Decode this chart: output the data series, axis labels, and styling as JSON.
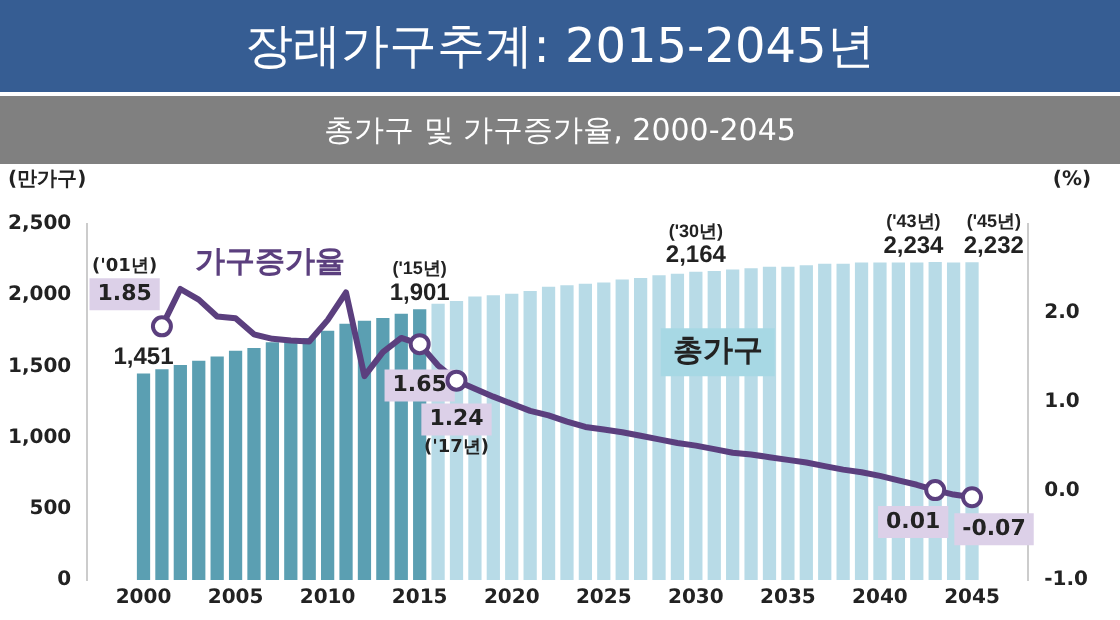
{
  "chart_data": {
    "type": "bar",
    "title": "장래가구추계: 2015-2045년",
    "subtitle": "총가구 및 가구증가율, 2000-2045",
    "ylabel": "(만가구)",
    "y2label": "(%)",
    "x": [
      2000,
      2001,
      2002,
      2003,
      2004,
      2005,
      2006,
      2007,
      2008,
      2009,
      2010,
      2011,
      2012,
      2013,
      2014,
      2015,
      2016,
      2017,
      2018,
      2019,
      2020,
      2021,
      2022,
      2023,
      2024,
      2025,
      2026,
      2027,
      2028,
      2029,
      2030,
      2031,
      2032,
      2033,
      2034,
      2035,
      2036,
      2037,
      2038,
      2039,
      2040,
      2041,
      2042,
      2043,
      2044,
      2045
    ],
    "xlim": [
      1999.5,
      2045.5
    ],
    "xticks": [
      2000,
      2005,
      2010,
      2015,
      2020,
      2025,
      2030,
      2035,
      2040,
      2045
    ],
    "ylim": [
      0,
      2500
    ],
    "yticks": [
      0,
      500,
      {
        "value": 1000,
        "label": "1,000"
      },
      {
        "value": 1500,
        "label": "1,500"
      },
      {
        "value": 2000,
        "label": "2,000"
      },
      {
        "value": 2500,
        "label": "2,500"
      }
    ],
    "y2lim": [
      -1,
      3
    ],
    "y2ticks": [
      {
        "value": -1,
        "label": "-1.0"
      },
      {
        "value": 0,
        "label": "0.0"
      },
      {
        "value": 1,
        "label": "1.0"
      },
      {
        "value": 2,
        "label": "2.0"
      }
    ],
    "grid": false,
    "legend": false,
    "series": [
      {
        "name": "총가구",
        "colors": [
          "#5b9fb2",
          "#5b9fb2",
          "#5b9fb2",
          "#5b9fb2",
          "#5b9fb2",
          "#5b9fb2",
          "#5b9fb2",
          "#5b9fb2",
          "#5b9fb2",
          "#5b9fb2",
          "#5b9fb2",
          "#5b9fb2",
          "#5b9fb2",
          "#5b9fb2",
          "#5b9fb2",
          "#5b9fb2",
          "#b8dbe7",
          "#b8dbe7",
          "#b8dbe7",
          "#b8dbe7",
          "#b8dbe7",
          "#b8dbe7",
          "#b8dbe7",
          "#b8dbe7",
          "#b8dbe7",
          "#b8dbe7",
          "#b8dbe7",
          "#b8dbe7",
          "#b8dbe7",
          "#b8dbe7",
          "#b8dbe7",
          "#b8dbe7",
          "#b8dbe7",
          "#b8dbe7",
          "#b8dbe7",
          "#b8dbe7",
          "#b8dbe7",
          "#b8dbe7",
          "#b8dbe7",
          "#b8dbe7",
          "#b8dbe7",
          "#b8dbe7",
          "#b8dbe7",
          "#b8dbe7",
          "#b8dbe7",
          "#b8dbe7"
        ],
        "values": [
          1451,
          1480,
          1510,
          1540,
          1570,
          1610,
          1630,
          1670,
          1680,
          1700,
          1750,
          1800,
          1820,
          1840,
          1870,
          1901,
          1940,
          1960,
          1990,
          2000,
          2010,
          2030,
          2060,
          2070,
          2080,
          2090,
          2110,
          2120,
          2140,
          2150,
          2164,
          2170,
          2180,
          2190,
          2200,
          2200,
          2210,
          2220,
          2220,
          2230,
          2230,
          2230,
          2230,
          2234,
          2230,
          2232
        ],
        "value_labels": [
          "1,451",
          null,
          null,
          null,
          null,
          null,
          null,
          null,
          null,
          null,
          null,
          null,
          null,
          null,
          null,
          "('15년)\n1,901",
          null,
          null,
          null,
          null,
          null,
          null,
          null,
          null,
          null,
          null,
          null,
          null,
          null,
          null,
          "('30년)\n2,164",
          null,
          null,
          null,
          null,
          null,
          null,
          null,
          null,
          null,
          null,
          null,
          null,
          "('43년)\n2,234",
          null,
          "('45년)\n2,232"
        ]
      },
      {
        "name": "가구증가율",
        "type": "line",
        "axis": "y2",
        "color": "#5b3f7e",
        "values": [
          null,
          1.85,
          2.27,
          2.15,
          1.96,
          1.94,
          1.76,
          1.71,
          1.69,
          1.68,
          1.92,
          2.23,
          1.29,
          1.56,
          1.72,
          1.65,
          1.41,
          1.24,
          1.15,
          1.06,
          0.98,
          0.9,
          0.85,
          0.78,
          0.72,
          0.69,
          0.66,
          0.62,
          0.58,
          0.54,
          0.51,
          0.47,
          0.43,
          0.41,
          0.38,
          0.35,
          0.32,
          0.28,
          0.24,
          0.21,
          0.17,
          0.12,
          0.07,
          0.01,
          -0.04,
          -0.07
        ],
        "value_labels": [
          null,
          "('01년)\n1.85",
          null,
          null,
          null,
          null,
          null,
          null,
          null,
          null,
          null,
          null,
          null,
          null,
          null,
          "1.65",
          null,
          "1.24\n('17년)",
          null,
          null,
          null,
          null,
          null,
          null,
          null,
          null,
          null,
          null,
          null,
          null,
          null,
          null,
          null,
          null,
          null,
          null,
          null,
          null,
          null,
          null,
          null,
          null,
          null,
          "0.01",
          null,
          "-0.07"
        ]
      }
    ]
  }
}
